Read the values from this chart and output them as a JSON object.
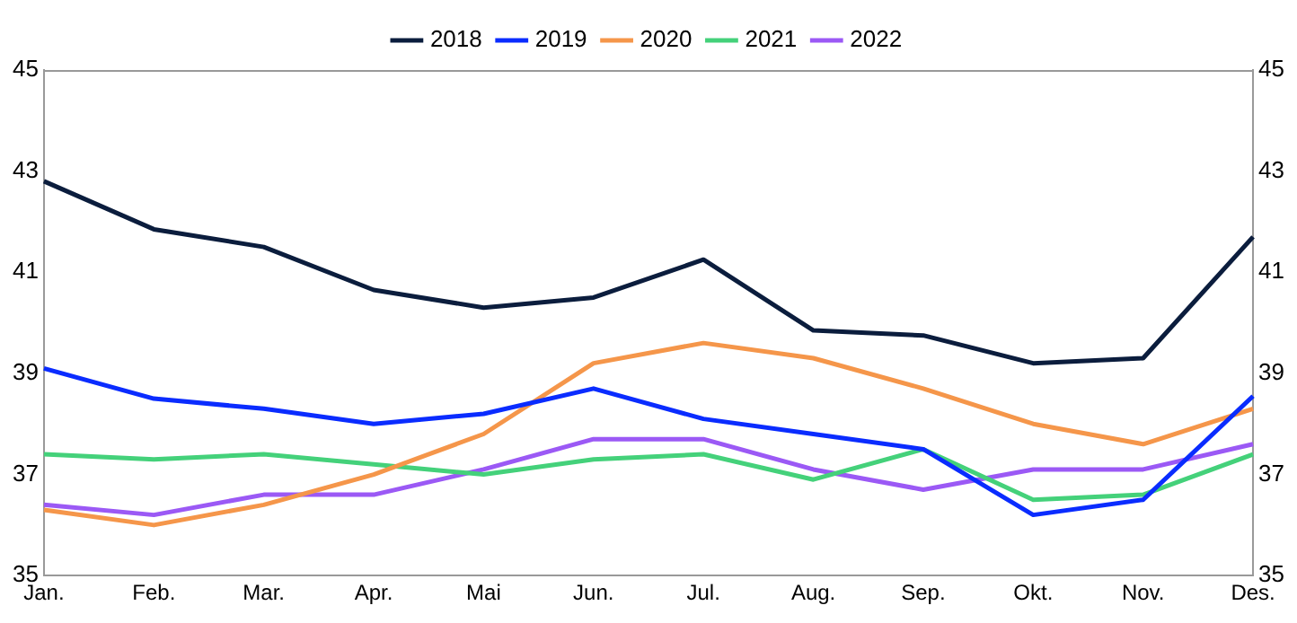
{
  "chart_data": {
    "type": "line",
    "categories": [
      "Jan.",
      "Feb.",
      "Mar.",
      "Apr.",
      "Mai",
      "Jun.",
      "Jul.",
      "Aug.",
      "Sep.",
      "Okt.",
      "Nov.",
      "Des."
    ],
    "series": [
      {
        "name": "2018",
        "color": "#0b1d3d",
        "values": [
          42.8,
          41.85,
          41.5,
          40.65,
          40.3,
          40.5,
          41.25,
          39.85,
          39.75,
          39.2,
          39.3,
          41.7
        ]
      },
      {
        "name": "2019",
        "color": "#0a2cff",
        "values": [
          39.1,
          38.5,
          38.3,
          38.0,
          38.2,
          38.7,
          38.1,
          37.8,
          37.5,
          36.2,
          36.5,
          38.55
        ]
      },
      {
        "name": "2020",
        "color": "#f5964a",
        "values": [
          36.3,
          36.0,
          36.4,
          37.0,
          37.8,
          39.2,
          39.6,
          39.3,
          38.7,
          38.0,
          37.6,
          38.3
        ]
      },
      {
        "name": "2021",
        "color": "#44d17a",
        "values": [
          37.4,
          37.3,
          37.4,
          37.2,
          37.0,
          37.3,
          37.4,
          36.9,
          37.5,
          36.5,
          36.6,
          37.4
        ]
      },
      {
        "name": "2022",
        "color": "#9b59f5",
        "values": [
          36.4,
          36.2,
          36.6,
          36.6,
          37.1,
          37.7,
          37.7,
          37.1,
          36.7,
          37.1,
          37.1,
          37.6
        ]
      }
    ],
    "ylim": [
      35,
      45
    ],
    "yticks": [
      35,
      37,
      39,
      41,
      43,
      45
    ],
    "y2lim": [
      35,
      45
    ],
    "y2ticks": [
      35,
      37,
      39,
      41,
      43,
      45
    ],
    "grid": false,
    "legend": "top",
    "marker": "none",
    "line_style": "solid"
  }
}
